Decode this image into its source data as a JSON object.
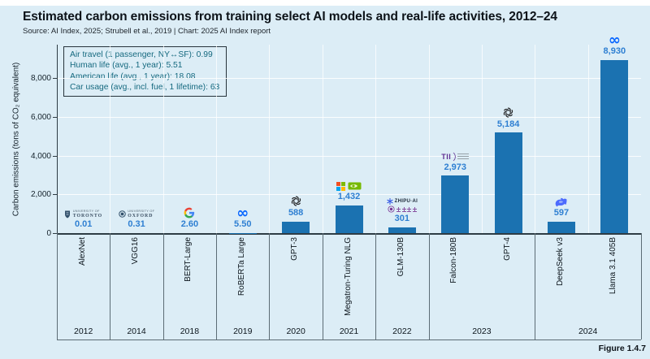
{
  "header": {
    "title": "Estimated carbon emissions from training select AI models and real-life activities, 2012–24",
    "source": "Source: AI Index, 2025; Strubell et al., 2019 | Chart: 2025 AI Index report"
  },
  "figure_label": "Figure 1.4.7",
  "annotation_box": {
    "lines": [
      "Air travel (1 passenger, NY↔SF): 0.99",
      "Human life (avg., 1 year): 5.51",
      "American life (avg., 1 year): 18.08",
      "Car usage (avg., incl. fuel, 1 lifetime): 63"
    ]
  },
  "chart_data": {
    "type": "bar",
    "title": "Estimated carbon emissions from training select AI models and real-life activities, 2012–24",
    "xlabel": "",
    "ylabel": "Carbon emissions (tons of CO₂ equivalent)",
    "ylim": [
      0,
      9400
    ],
    "yticks": [
      0,
      2000,
      4000,
      6000,
      8000
    ],
    "ytick_labels": [
      "0",
      "2,000",
      "4,000",
      "6,000",
      "8,000"
    ],
    "grid": true,
    "legend_position": "none",
    "bar_color": "#1b72b1",
    "value_label_color": "#2e7fd2",
    "bars": [
      {
        "model": "AlexNet",
        "year": "2012",
        "value": 0.01,
        "label": "0.01",
        "icon_rows": [
          [
            {
              "icon": "university-of-toronto-logo",
              "lines": [
                "UNIVERSITY OF",
                "TORONTO"
              ]
            }
          ]
        ]
      },
      {
        "model": "VGG16",
        "year": "2014",
        "value": 0.31,
        "label": "0.31",
        "icon_rows": [
          [
            {
              "icon": "university-of-oxford-logo",
              "lines": [
                "UNIVERSITY OF",
                "OXFORD"
              ]
            }
          ]
        ]
      },
      {
        "model": "BERT-Large",
        "year": "2018",
        "value": 2.6,
        "label": "2.60",
        "icon_rows": [
          [
            {
              "icon": "google-logo"
            }
          ]
        ]
      },
      {
        "model": "RoBERTa Large",
        "year": "2019",
        "value": 5.5,
        "label": "5.50",
        "icon_rows": [
          [
            {
              "icon": "meta-logo"
            }
          ]
        ]
      },
      {
        "model": "GPT-3",
        "year": "2020",
        "value": 588,
        "label": "588",
        "icon_rows": [
          [
            {
              "icon": "openai-logo"
            }
          ]
        ]
      },
      {
        "model": "Megatron-Turing NLG",
        "year": "2021",
        "value": 1432,
        "label": "1,432",
        "icon_rows": [
          [
            {
              "icon": "microsoft-logo"
            },
            {
              "icon": "nvidia-logo"
            }
          ]
        ]
      },
      {
        "model": "GLM-130B",
        "year": "2022",
        "value": 301,
        "label": "301",
        "icon_rows": [
          [
            {
              "icon": "zhipu-ai-logo",
              "text": "ZHIPU·AI"
            }
          ],
          [
            {
              "icon": "tsinghua-university-logo",
              "text": "清华大学"
            }
          ]
        ]
      },
      {
        "model": "Falcon-180B",
        "year": "2023",
        "value": 2973,
        "label": "2,973",
        "icon_rows": [
          [
            {
              "icon": "tii-logo",
              "text": "TII"
            }
          ]
        ]
      },
      {
        "model": "GPT-4",
        "year": "2023",
        "value": 5184,
        "label": "5,184",
        "icon_rows": [
          [
            {
              "icon": "openai-logo"
            }
          ]
        ]
      },
      {
        "model": "DeepSeek v3",
        "year": "2024",
        "value": 597,
        "label": "597",
        "icon_rows": [
          [
            {
              "icon": "deepseek-logo"
            }
          ]
        ]
      },
      {
        "model": "Llama 3.1 405B",
        "year": "2024",
        "value": 8930,
        "label": "8,930",
        "icon_rows": [
          [
            {
              "icon": "meta-logo"
            }
          ]
        ]
      }
    ],
    "year_groups": [
      {
        "year": "2012",
        "span": 1
      },
      {
        "year": "2014",
        "span": 1
      },
      {
        "year": "2018",
        "span": 1
      },
      {
        "year": "2019",
        "span": 1
      },
      {
        "year": "2020",
        "span": 1
      },
      {
        "year": "2021",
        "span": 1
      },
      {
        "year": "2022",
        "span": 1
      },
      {
        "year": "2023",
        "span": 2
      },
      {
        "year": "2024",
        "span": 2
      }
    ]
  }
}
